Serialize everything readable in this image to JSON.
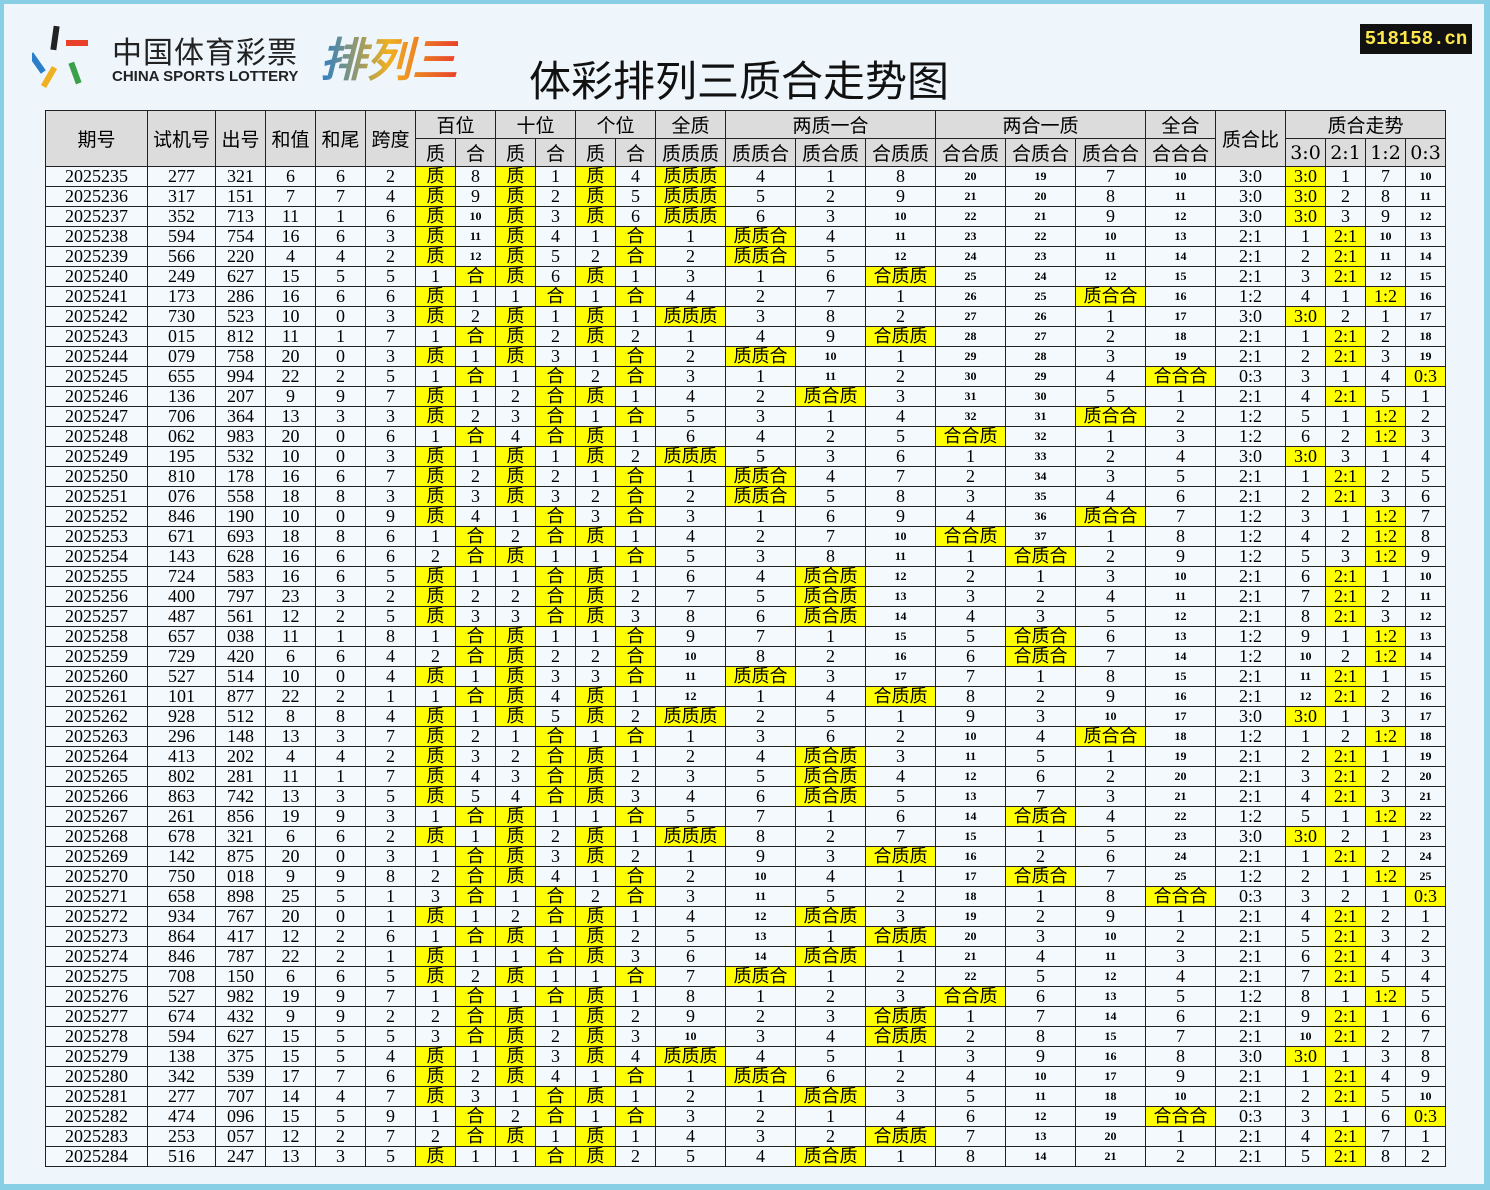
{
  "logo": {
    "cn": "中国体育彩票",
    "en": "CHINA SPORTS LOTTERY",
    "brand": "排列三"
  },
  "title": "体彩排列三质合走势图",
  "site": "518158.cn",
  "colors": {
    "highlight": "#ffff00",
    "header": "#dcdcdc",
    "site_text": "#ffe84a"
  },
  "headers": {
    "top": [
      "期号",
      "试机号",
      "出号",
      "和值",
      "和尾",
      "跨度",
      "百位",
      "十位",
      "个位",
      "全质",
      "两质一合",
      "两合一质",
      "全合",
      "质合比",
      "质合走势"
    ],
    "sub": [
      "质",
      "合",
      "质",
      "合",
      "质",
      "合",
      "质质质",
      "质质合",
      "质合质",
      "合质质",
      "合合质",
      "合质合",
      "质合合",
      "合合合",
      "3:0",
      "2:1",
      "1:2",
      "0:3"
    ]
  },
  "rows": [
    [
      "2025235",
      "277",
      "321",
      "6",
      "6",
      "2",
      "质",
      "8",
      "质",
      "1",
      "质",
      "4",
      "质质质",
      "4",
      "1",
      "8",
      "20",
      "19",
      "7",
      "10",
      "3:0",
      "3:0",
      "1",
      "7",
      "10"
    ],
    [
      "2025236",
      "317",
      "151",
      "7",
      "7",
      "4",
      "质",
      "9",
      "质",
      "2",
      "质",
      "5",
      "质质质",
      "5",
      "2",
      "9",
      "21",
      "20",
      "8",
      "11",
      "3:0",
      "3:0",
      "2",
      "8",
      "11"
    ],
    [
      "2025237",
      "352",
      "713",
      "11",
      "1",
      "6",
      "质",
      "10",
      "质",
      "3",
      "质",
      "6",
      "质质质",
      "6",
      "3",
      "10",
      "22",
      "21",
      "9",
      "12",
      "3:0",
      "3:0",
      "3",
      "9",
      "12"
    ],
    [
      "2025238",
      "594",
      "754",
      "16",
      "6",
      "3",
      "质",
      "11",
      "质",
      "4",
      "1",
      "合",
      "1",
      "质质合",
      "4",
      "11",
      "23",
      "22",
      "10",
      "13",
      "2:1",
      "1",
      "2:1",
      "10",
      "13"
    ],
    [
      "2025239",
      "566",
      "220",
      "4",
      "4",
      "2",
      "质",
      "12",
      "质",
      "5",
      "2",
      "合",
      "2",
      "质质合",
      "5",
      "12",
      "24",
      "23",
      "11",
      "14",
      "2:1",
      "2",
      "2:1",
      "11",
      "14"
    ],
    [
      "2025240",
      "249",
      "627",
      "15",
      "5",
      "5",
      "1",
      "合",
      "质",
      "6",
      "质",
      "1",
      "3",
      "1",
      "6",
      "合质质",
      "25",
      "24",
      "12",
      "15",
      "2:1",
      "3",
      "2:1",
      "12",
      "15"
    ],
    [
      "2025241",
      "173",
      "286",
      "16",
      "6",
      "6",
      "质",
      "1",
      "1",
      "合",
      "1",
      "合",
      "4",
      "2",
      "7",
      "1",
      "26",
      "25",
      "质合合",
      "16",
      "1:2",
      "4",
      "1",
      "1:2",
      "16"
    ],
    [
      "2025242",
      "730",
      "523",
      "10",
      "0",
      "3",
      "质",
      "2",
      "质",
      "1",
      "质",
      "1",
      "质质质",
      "3",
      "8",
      "2",
      "27",
      "26",
      "1",
      "17",
      "3:0",
      "3:0",
      "2",
      "1",
      "17"
    ],
    [
      "2025243",
      "015",
      "812",
      "11",
      "1",
      "7",
      "1",
      "合",
      "质",
      "2",
      "质",
      "2",
      "1",
      "4",
      "9",
      "合质质",
      "28",
      "27",
      "2",
      "18",
      "2:1",
      "1",
      "2:1",
      "2",
      "18"
    ],
    [
      "2025244",
      "079",
      "758",
      "20",
      "0",
      "3",
      "质",
      "1",
      "质",
      "3",
      "1",
      "合",
      "2",
      "质质合",
      "10",
      "1",
      "29",
      "28",
      "3",
      "19",
      "2:1",
      "2",
      "2:1",
      "3",
      "19"
    ],
    [
      "2025245",
      "655",
      "994",
      "22",
      "2",
      "5",
      "1",
      "合",
      "1",
      "合",
      "2",
      "合",
      "3",
      "1",
      "11",
      "2",
      "30",
      "29",
      "4",
      "合合合",
      "0:3",
      "3",
      "1",
      "4",
      "0:3"
    ],
    [
      "2025246",
      "136",
      "207",
      "9",
      "9",
      "7",
      "质",
      "1",
      "2",
      "合",
      "质",
      "1",
      "4",
      "2",
      "质合质",
      "3",
      "31",
      "30",
      "5",
      "1",
      "2:1",
      "4",
      "2:1",
      "5",
      "1"
    ],
    [
      "2025247",
      "706",
      "364",
      "13",
      "3",
      "3",
      "质",
      "2",
      "3",
      "合",
      "1",
      "合",
      "5",
      "3",
      "1",
      "4",
      "32",
      "31",
      "质合合",
      "2",
      "1:2",
      "5",
      "1",
      "1:2",
      "2"
    ],
    [
      "2025248",
      "062",
      "983",
      "20",
      "0",
      "6",
      "1",
      "合",
      "4",
      "合",
      "质",
      "1",
      "6",
      "4",
      "2",
      "5",
      "合合质",
      "32",
      "1",
      "3",
      "1:2",
      "6",
      "2",
      "1:2",
      "3"
    ],
    [
      "2025249",
      "195",
      "532",
      "10",
      "0",
      "3",
      "质",
      "1",
      "质",
      "1",
      "质",
      "2",
      "质质质",
      "5",
      "3",
      "6",
      "1",
      "33",
      "2",
      "4",
      "3:0",
      "3:0",
      "3",
      "1",
      "4"
    ],
    [
      "2025250",
      "810",
      "178",
      "16",
      "6",
      "7",
      "质",
      "2",
      "质",
      "2",
      "1",
      "合",
      "1",
      "质质合",
      "4",
      "7",
      "2",
      "34",
      "3",
      "5",
      "2:1",
      "1",
      "2:1",
      "2",
      "5"
    ],
    [
      "2025251",
      "076",
      "558",
      "18",
      "8",
      "3",
      "质",
      "3",
      "质",
      "3",
      "2",
      "合",
      "2",
      "质质合",
      "5",
      "8",
      "3",
      "35",
      "4",
      "6",
      "2:1",
      "2",
      "2:1",
      "3",
      "6"
    ],
    [
      "2025252",
      "846",
      "190",
      "10",
      "0",
      "9",
      "质",
      "4",
      "1",
      "合",
      "3",
      "合",
      "3",
      "1",
      "6",
      "9",
      "4",
      "36",
      "质合合",
      "7",
      "1:2",
      "3",
      "1",
      "1:2",
      "7"
    ],
    [
      "2025253",
      "671",
      "693",
      "18",
      "8",
      "6",
      "1",
      "合",
      "2",
      "合",
      "质",
      "1",
      "4",
      "2",
      "7",
      "10",
      "合合质",
      "37",
      "1",
      "8",
      "1:2",
      "4",
      "2",
      "1:2",
      "8"
    ],
    [
      "2025254",
      "143",
      "628",
      "16",
      "6",
      "6",
      "2",
      "合",
      "质",
      "1",
      "1",
      "合",
      "5",
      "3",
      "8",
      "11",
      "1",
      "合质合",
      "2",
      "9",
      "1:2",
      "5",
      "3",
      "1:2",
      "9"
    ],
    [
      "2025255",
      "724",
      "583",
      "16",
      "6",
      "5",
      "质",
      "1",
      "1",
      "合",
      "质",
      "1",
      "6",
      "4",
      "质合质",
      "12",
      "2",
      "1",
      "3",
      "10",
      "2:1",
      "6",
      "2:1",
      "1",
      "10"
    ],
    [
      "2025256",
      "400",
      "797",
      "23",
      "3",
      "2",
      "质",
      "2",
      "2",
      "合",
      "质",
      "2",
      "7",
      "5",
      "质合质",
      "13",
      "3",
      "2",
      "4",
      "11",
      "2:1",
      "7",
      "2:1",
      "2",
      "11"
    ],
    [
      "2025257",
      "487",
      "561",
      "12",
      "2",
      "5",
      "质",
      "3",
      "3",
      "合",
      "质",
      "3",
      "8",
      "6",
      "质合质",
      "14",
      "4",
      "3",
      "5",
      "12",
      "2:1",
      "8",
      "2:1",
      "3",
      "12"
    ],
    [
      "2025258",
      "657",
      "038",
      "11",
      "1",
      "8",
      "1",
      "合",
      "质",
      "1",
      "1",
      "合",
      "9",
      "7",
      "1",
      "15",
      "5",
      "合质合",
      "6",
      "13",
      "1:2",
      "9",
      "1",
      "1:2",
      "13"
    ],
    [
      "2025259",
      "729",
      "420",
      "6",
      "6",
      "4",
      "2",
      "合",
      "质",
      "2",
      "2",
      "合",
      "10",
      "8",
      "2",
      "16",
      "6",
      "合质合",
      "7",
      "14",
      "1:2",
      "10",
      "2",
      "1:2",
      "14"
    ],
    [
      "2025260",
      "527",
      "514",
      "10",
      "0",
      "4",
      "质",
      "1",
      "质",
      "3",
      "3",
      "合",
      "11",
      "质质合",
      "3",
      "17",
      "7",
      "1",
      "8",
      "15",
      "2:1",
      "11",
      "2:1",
      "1",
      "15"
    ],
    [
      "2025261",
      "101",
      "877",
      "22",
      "2",
      "1",
      "1",
      "合",
      "质",
      "4",
      "质",
      "1",
      "12",
      "1",
      "4",
      "合质质",
      "8",
      "2",
      "9",
      "16",
      "2:1",
      "12",
      "2:1",
      "2",
      "16"
    ],
    [
      "2025262",
      "928",
      "512",
      "8",
      "8",
      "4",
      "质",
      "1",
      "质",
      "5",
      "质",
      "2",
      "质质质",
      "2",
      "5",
      "1",
      "9",
      "3",
      "10",
      "17",
      "3:0",
      "3:0",
      "1",
      "3",
      "17"
    ],
    [
      "2025263",
      "296",
      "148",
      "13",
      "3",
      "7",
      "质",
      "2",
      "1",
      "合",
      "1",
      "合",
      "1",
      "3",
      "6",
      "2",
      "10",
      "4",
      "质合合",
      "18",
      "1:2",
      "1",
      "2",
      "1:2",
      "18"
    ],
    [
      "2025264",
      "413",
      "202",
      "4",
      "4",
      "2",
      "质",
      "3",
      "2",
      "合",
      "质",
      "1",
      "2",
      "4",
      "质合质",
      "3",
      "11",
      "5",
      "1",
      "19",
      "2:1",
      "2",
      "2:1",
      "1",
      "19"
    ],
    [
      "2025265",
      "802",
      "281",
      "11",
      "1",
      "7",
      "质",
      "4",
      "3",
      "合",
      "质",
      "2",
      "3",
      "5",
      "质合质",
      "4",
      "12",
      "6",
      "2",
      "20",
      "2:1",
      "3",
      "2:1",
      "2",
      "20"
    ],
    [
      "2025266",
      "863",
      "742",
      "13",
      "3",
      "5",
      "质",
      "5",
      "4",
      "合",
      "质",
      "3",
      "4",
      "6",
      "质合质",
      "5",
      "13",
      "7",
      "3",
      "21",
      "2:1",
      "4",
      "2:1",
      "3",
      "21"
    ],
    [
      "2025267",
      "261",
      "856",
      "19",
      "9",
      "3",
      "1",
      "合",
      "质",
      "1",
      "1",
      "合",
      "5",
      "7",
      "1",
      "6",
      "14",
      "合质合",
      "4",
      "22",
      "1:2",
      "5",
      "1",
      "1:2",
      "22"
    ],
    [
      "2025268",
      "678",
      "321",
      "6",
      "6",
      "2",
      "质",
      "1",
      "质",
      "2",
      "质",
      "1",
      "质质质",
      "8",
      "2",
      "7",
      "15",
      "1",
      "5",
      "23",
      "3:0",
      "3:0",
      "2",
      "1",
      "23"
    ],
    [
      "2025269",
      "142",
      "875",
      "20",
      "0",
      "3",
      "1",
      "合",
      "质",
      "3",
      "质",
      "2",
      "1",
      "9",
      "3",
      "合质质",
      "16",
      "2",
      "6",
      "24",
      "2:1",
      "1",
      "2:1",
      "2",
      "24"
    ],
    [
      "2025270",
      "750",
      "018",
      "9",
      "9",
      "8",
      "2",
      "合",
      "质",
      "4",
      "1",
      "合",
      "2",
      "10",
      "4",
      "1",
      "17",
      "合质合",
      "7",
      "25",
      "1:2",
      "2",
      "1",
      "1:2",
      "25"
    ],
    [
      "2025271",
      "658",
      "898",
      "25",
      "5",
      "1",
      "3",
      "合",
      "1",
      "合",
      "2",
      "合",
      "3",
      "11",
      "5",
      "2",
      "18",
      "1",
      "8",
      "合合合",
      "0:3",
      "3",
      "2",
      "1",
      "0:3"
    ],
    [
      "2025272",
      "934",
      "767",
      "20",
      "0",
      "1",
      "质",
      "1",
      "2",
      "合",
      "质",
      "1",
      "4",
      "12",
      "质合质",
      "3",
      "19",
      "2",
      "9",
      "1",
      "2:1",
      "4",
      "2:1",
      "2",
      "1"
    ],
    [
      "2025273",
      "864",
      "417",
      "12",
      "2",
      "6",
      "1",
      "合",
      "质",
      "1",
      "质",
      "2",
      "5",
      "13",
      "1",
      "合质质",
      "20",
      "3",
      "10",
      "2",
      "2:1",
      "5",
      "2:1",
      "3",
      "2"
    ],
    [
      "2025274",
      "846",
      "787",
      "22",
      "2",
      "1",
      "质",
      "1",
      "1",
      "合",
      "质",
      "3",
      "6",
      "14",
      "质合质",
      "1",
      "21",
      "4",
      "11",
      "3",
      "2:1",
      "6",
      "2:1",
      "4",
      "3"
    ],
    [
      "2025275",
      "708",
      "150",
      "6",
      "6",
      "5",
      "质",
      "2",
      "质",
      "1",
      "1",
      "合",
      "7",
      "质质合",
      "1",
      "2",
      "22",
      "5",
      "12",
      "4",
      "2:1",
      "7",
      "2:1",
      "5",
      "4"
    ],
    [
      "2025276",
      "527",
      "982",
      "19",
      "9",
      "7",
      "1",
      "合",
      "1",
      "合",
      "质",
      "1",
      "8",
      "1",
      "2",
      "3",
      "合合质",
      "6",
      "13",
      "5",
      "1:2",
      "8",
      "1",
      "1:2",
      "5"
    ],
    [
      "2025277",
      "674",
      "432",
      "9",
      "9",
      "2",
      "2",
      "合",
      "质",
      "1",
      "质",
      "2",
      "9",
      "2",
      "3",
      "合质质",
      "1",
      "7",
      "14",
      "6",
      "2:1",
      "9",
      "2:1",
      "1",
      "6"
    ],
    [
      "2025278",
      "594",
      "627",
      "15",
      "5",
      "5",
      "3",
      "合",
      "质",
      "2",
      "质",
      "3",
      "10",
      "3",
      "4",
      "合质质",
      "2",
      "8",
      "15",
      "7",
      "2:1",
      "10",
      "2:1",
      "2",
      "7"
    ],
    [
      "2025279",
      "138",
      "375",
      "15",
      "5",
      "4",
      "质",
      "1",
      "质",
      "3",
      "质",
      "4",
      "质质质",
      "4",
      "5",
      "1",
      "3",
      "9",
      "16",
      "8",
      "3:0",
      "3:0",
      "1",
      "3",
      "8"
    ],
    [
      "2025280",
      "342",
      "539",
      "17",
      "7",
      "6",
      "质",
      "2",
      "质",
      "4",
      "1",
      "合",
      "1",
      "质质合",
      "6",
      "2",
      "4",
      "10",
      "17",
      "9",
      "2:1",
      "1",
      "2:1",
      "4",
      "9"
    ],
    [
      "2025281",
      "277",
      "707",
      "14",
      "4",
      "7",
      "质",
      "3",
      "1",
      "合",
      "质",
      "1",
      "2",
      "1",
      "质合质",
      "3",
      "5",
      "11",
      "18",
      "10",
      "2:1",
      "2",
      "2:1",
      "5",
      "10"
    ],
    [
      "2025282",
      "474",
      "096",
      "15",
      "5",
      "9",
      "1",
      "合",
      "2",
      "合",
      "1",
      "合",
      "3",
      "2",
      "1",
      "4",
      "6",
      "12",
      "19",
      "合合合",
      "0:3",
      "3",
      "1",
      "6",
      "0:3"
    ],
    [
      "2025283",
      "253",
      "057",
      "12",
      "2",
      "7",
      "2",
      "合",
      "质",
      "1",
      "质",
      "1",
      "4",
      "3",
      "2",
      "合质质",
      "7",
      "13",
      "20",
      "1",
      "2:1",
      "4",
      "2:1",
      "7",
      "1"
    ],
    [
      "2025284",
      "516",
      "247",
      "13",
      "3",
      "5",
      "质",
      "1",
      "1",
      "合",
      "质",
      "2",
      "5",
      "4",
      "质合质",
      "1",
      "8",
      "14",
      "21",
      "2",
      "2:1",
      "5",
      "2:1",
      "8",
      "2"
    ]
  ]
}
